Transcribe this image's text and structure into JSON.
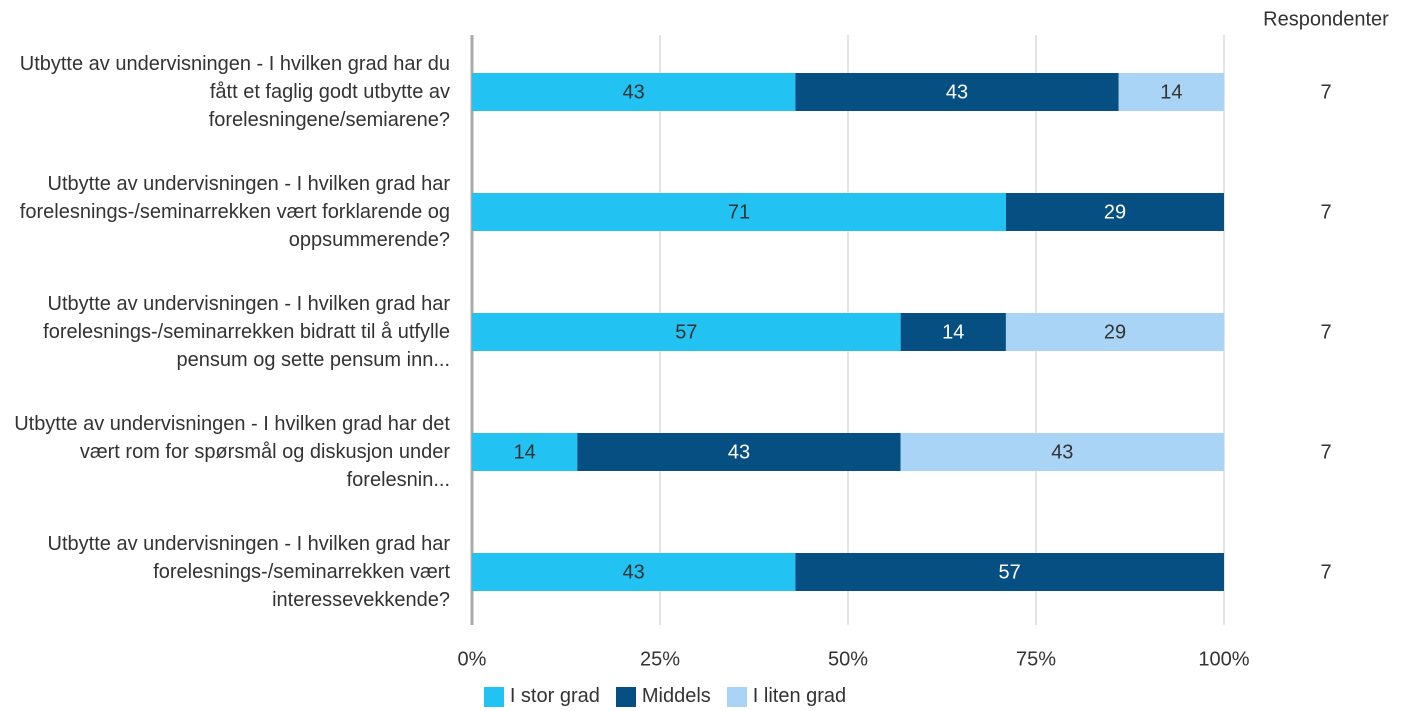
{
  "chart_data": {
    "type": "stacked_barh",
    "categories": [
      "Utbytte av undervisningen - I hvilken grad har du fått et faglig godt utbytte av forelesningene/semiarene?",
      "Utbytte av undervisningen - I hvilken grad har forelesnings-/seminarrekken vært forklarende og oppsummerende?",
      "Utbytte av undervisningen - I hvilken grad har forelesnings-/seminarrekken bidratt til å utfylle pensum og sette pensum inn...",
      "Utbytte av undervisningen - I hvilken grad har det vært rom for spørsmål og diskusjon under forelesnin...",
      "Utbytte av undervisningen - I hvilken grad har forelesnings-/seminarrekken vært interessevekkende?"
    ],
    "series": [
      {
        "name": "I stor grad",
        "color": "#22c3f3",
        "values": [
          43,
          71,
          57,
          14,
          43
        ]
      },
      {
        "name": "Middels",
        "color": "#054f82",
        "values": [
          43,
          29,
          14,
          43,
          57
        ]
      },
      {
        "name": "I liten grad",
        "color": "#a9d4f5",
        "values": [
          14,
          null,
          29,
          43,
          null
        ]
      }
    ],
    "xlim": [
      0,
      100
    ],
    "xticks": [
      {
        "value": 0,
        "label": "0%"
      },
      {
        "value": 25,
        "label": "25%"
      },
      {
        "value": 50,
        "label": "50%"
      },
      {
        "value": 75,
        "label": "75%"
      },
      {
        "value": 100,
        "label": "100%"
      }
    ],
    "grid": true,
    "respondents_label": "Respondenter",
    "respondents": [
      7,
      7,
      7,
      7,
      7
    ]
  }
}
